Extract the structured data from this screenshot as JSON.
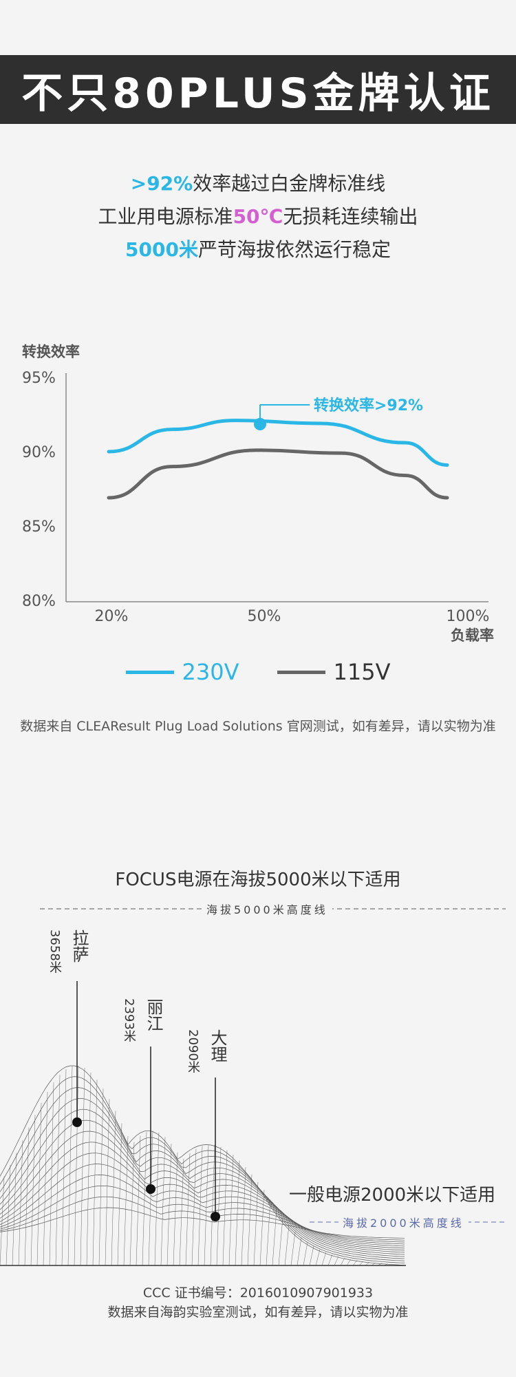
{
  "header": {
    "title": "不只80PLUS金牌认证"
  },
  "claims": {
    "line1_highlight": ">92%",
    "line1_text": "效率越过白金牌标准线",
    "line2_prefix": "工业用电源标准",
    "line2_highlight": "50℃",
    "line2_suffix": "无损耗连续输出",
    "line3_highlight": "5000米",
    "line3_text": "严苛海拔依然运行稳定"
  },
  "colors": {
    "accent_blue": "#2bb7e5",
    "accent_pink": "#d35fd1",
    "gray_series": "#666666",
    "banner_bg": "#2f2f2f"
  },
  "chart_data": {
    "type": "line",
    "ylabel": "转换效率",
    "xlabel": "负载率",
    "y_ticks": [
      "95%",
      "90%",
      "85%",
      "80%"
    ],
    "x_ticks": [
      "20%",
      "50%",
      "100%"
    ],
    "ylim": [
      80,
      95
    ],
    "annotation": "转换效率>92%",
    "series": [
      {
        "name": "230V",
        "color": "#2bb7e5",
        "x": [
          20,
          35,
          50,
          70,
          90,
          100
        ],
        "y": [
          90.0,
          91.5,
          92.1,
          91.9,
          90.6,
          89.1
        ]
      },
      {
        "name": "115V",
        "color": "#666666",
        "x": [
          20,
          35,
          55,
          75,
          90,
          100
        ],
        "y": [
          86.9,
          89.0,
          90.1,
          89.9,
          88.4,
          86.9
        ]
      }
    ]
  },
  "source_note": "数据来自 CLEAResult Plug Load Solutions 官网测试，如有差异，请以实物为准",
  "altitude": {
    "title": "FOCUS电源在海拔5000米以下适用",
    "line5000_label": "海拔5000米高度线",
    "line2000_label": "海拔2000米高度线",
    "general_text": "一般电源2000米以下适用",
    "cities": [
      {
        "name": "拉萨",
        "altitude": "3658米"
      },
      {
        "name": "丽江",
        "altitude": "2393米"
      },
      {
        "name": "大理",
        "altitude": "2090米"
      }
    ]
  },
  "footer": {
    "cert": "CCC 证书编号：2016010907901933",
    "note": "数据来自海韵实验室测试，如有差异，请以实物为准"
  }
}
